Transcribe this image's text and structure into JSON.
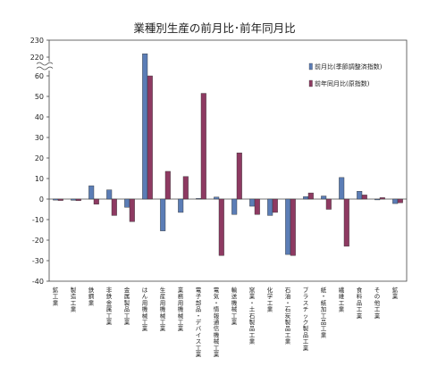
{
  "chart_data": {
    "type": "bar",
    "title": "業種別生産の前月比･前年同月比",
    "xlabel": "",
    "ylabel": "",
    "axis_break": {
      "lower_max": 60,
      "upper_ticks": [
        220,
        230
      ]
    },
    "ylim": [
      -40,
      230
    ],
    "yticks": [
      230,
      220,
      60,
      50,
      40,
      30,
      20,
      10,
      0,
      -10,
      -20,
      -30,
      -40
    ],
    "grid": false,
    "legend_position": "right",
    "categories": [
      "鉱工業",
      "製造工業",
      "鉄鋼業",
      "非鉄金属工業",
      "金属製品工業",
      "はん用機械工業",
      "生産用機械工業",
      "業務用機械工業",
      "電子部品・デバイス工業",
      "電気・情報通信機械工業",
      "輸送機械工業",
      "窯業・土石製品工業",
      "化学工業",
      "石油・石炭製品工業",
      "プラスチック製品工業",
      "紙・紙加工品工業",
      "繊維工業",
      "食料品工業",
      "その他工業",
      "鉱業"
    ],
    "series": [
      {
        "name": "前月比(季節調整済指数)",
        "color": "#5b7db6",
        "values": [
          -0.5,
          -0.6,
          6.5,
          4.5,
          -4.0,
          222.0,
          -15.5,
          -6.5,
          0.3,
          1.0,
          -7.5,
          -3.5,
          -8.0,
          -27.0,
          1.2,
          1.5,
          10.5,
          3.8,
          -0.4,
          -2.2
        ]
      },
      {
        "name": "前年同月比(原指数)",
        "color": "#8e3a62",
        "values": [
          -0.7,
          -0.8,
          -2.5,
          -8.0,
          -11.0,
          63.0,
          13.5,
          11.0,
          51.5,
          -27.5,
          22.5,
          -7.5,
          -6.5,
          -27.5,
          3.0,
          -5.0,
          -23.0,
          2.0,
          0.7,
          -1.8
        ]
      }
    ]
  }
}
